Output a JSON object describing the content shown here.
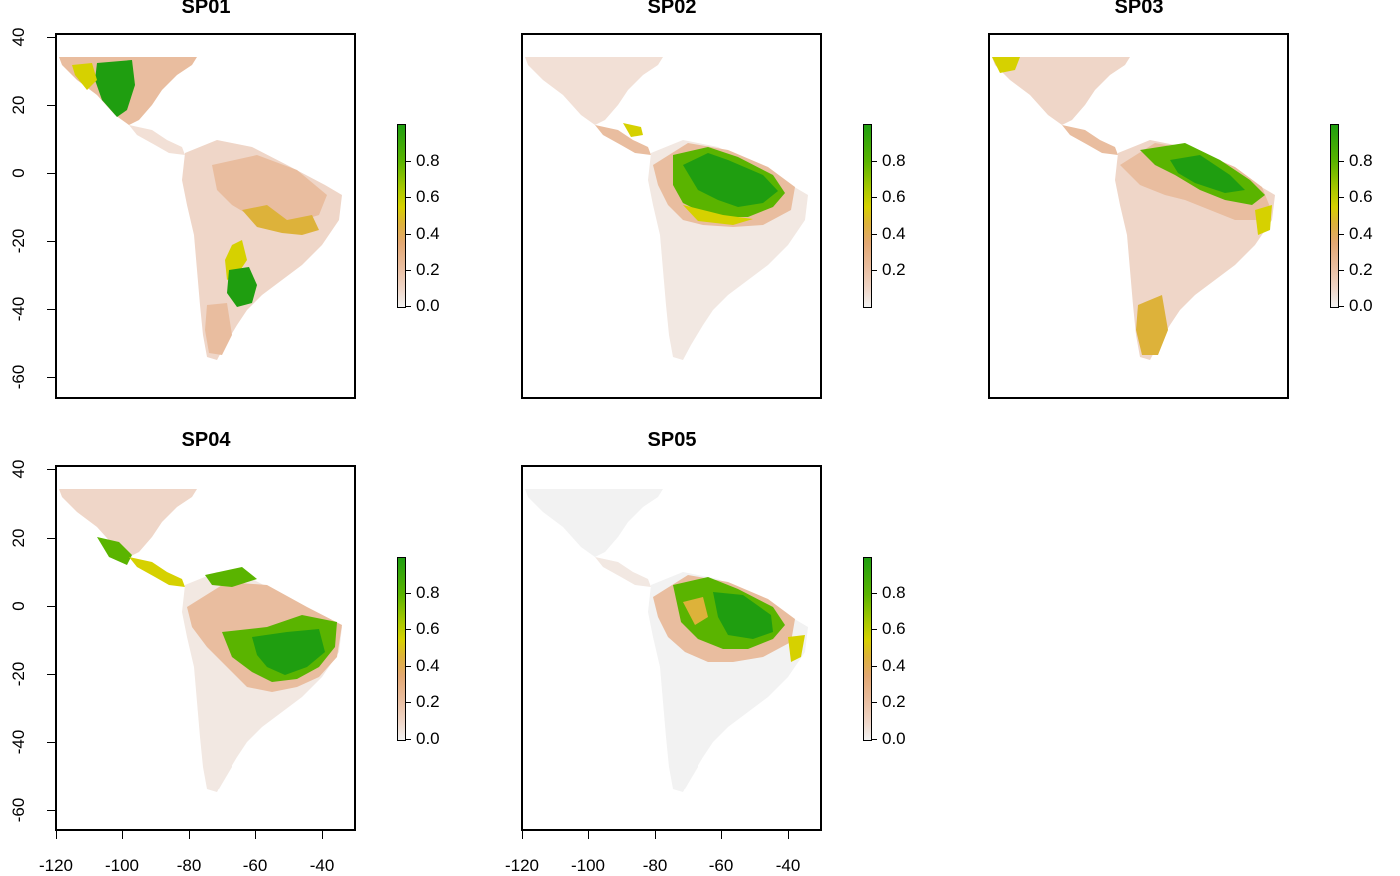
{
  "panels": [
    {
      "title": "SP01",
      "legend": [
        "0.8",
        "0.6",
        "0.4",
        "0.2",
        "0.0"
      ]
    },
    {
      "title": "SP02",
      "legend": [
        "0.8",
        "0.6",
        "0.4",
        "0.2"
      ]
    },
    {
      "title": "SP03",
      "legend": [
        "0.8",
        "0.6",
        "0.4",
        "0.2",
        "0.0"
      ]
    },
    {
      "title": "SP04",
      "legend": [
        "0.8",
        "0.6",
        "0.4",
        "0.2",
        "0.0"
      ]
    },
    {
      "title": "SP05",
      "legend": [
        "0.8",
        "0.6",
        "0.4",
        "0.2",
        "0.0"
      ]
    }
  ],
  "y_axis_labels": [
    "40",
    "20",
    "0",
    "-20",
    "-40",
    "-60"
  ],
  "x_axis_labels": [
    "-120",
    "-100",
    "-80",
    "-60",
    "-40"
  ],
  "colors": {
    "very_low": "#f2f2f2",
    "low": "#e9bd9f",
    "mid": "#ddb23a",
    "high_yellow": "#d6d100",
    "high_green": "#5ab400",
    "max_green": "#1f9e10"
  }
}
